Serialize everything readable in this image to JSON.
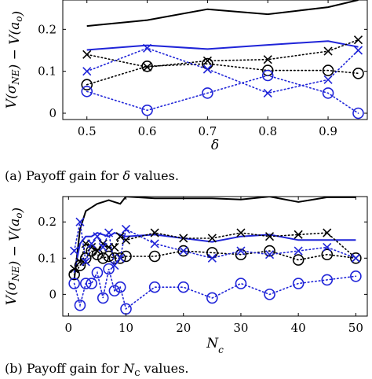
{
  "captions": {
    "a_prefix": "(a) Payoff gain for ",
    "a_symbol": "δ",
    "a_suffix": " values.",
    "b_prefix": "(b) Payoff gain for ",
    "b_symbol": "N",
    "b_sub": "c",
    "b_suffix": " values."
  },
  "colors": {
    "black": "#000000",
    "blue": "#1f24d8"
  },
  "chart_data": [
    {
      "type": "line",
      "xlabel": "δ",
      "ylabel": "V(σ_NE) − V(a_o)",
      "xlim": [
        0.46,
        0.965
      ],
      "ylim": [
        -0.015,
        0.27
      ],
      "xticks": [
        0.5,
        0.6,
        0.7,
        0.8,
        0.9
      ],
      "yticks": [
        0,
        0.1,
        0.2
      ],
      "grid": false,
      "series": [
        {
          "color": "#000000",
          "style": "solid",
          "marker": "none",
          "x": [
            0.5,
            0.6,
            0.7,
            0.8,
            0.9,
            0.95
          ],
          "y": [
            0.208,
            0.222,
            0.248,
            0.236,
            0.253,
            0.27
          ]
        },
        {
          "color": "#1f24d8",
          "style": "solid",
          "marker": "none",
          "x": [
            0.5,
            0.6,
            0.7,
            0.8,
            0.9,
            0.95
          ],
          "y": [
            0.151,
            0.162,
            0.153,
            0.163,
            0.172,
            0.158
          ]
        },
        {
          "color": "#000000",
          "style": "dotted",
          "marker": "x",
          "x": [
            0.5,
            0.6,
            0.7,
            0.8,
            0.9,
            0.95
          ],
          "y": [
            0.14,
            0.11,
            0.125,
            0.128,
            0.148,
            0.175
          ]
        },
        {
          "color": "#000000",
          "style": "dotted",
          "marker": "o",
          "x": [
            0.5,
            0.6,
            0.7,
            0.8,
            0.9,
            0.95
          ],
          "y": [
            0.068,
            0.112,
            0.118,
            0.102,
            0.102,
            0.095
          ]
        },
        {
          "color": "#1f24d8",
          "style": "dotted",
          "marker": "x",
          "x": [
            0.5,
            0.6,
            0.7,
            0.8,
            0.9,
            0.95
          ],
          "y": [
            0.1,
            0.155,
            0.105,
            0.048,
            0.08,
            0.15
          ]
        },
        {
          "color": "#1f24d8",
          "style": "dotted",
          "marker": "o",
          "x": [
            0.5,
            0.6,
            0.7,
            0.8,
            0.9,
            0.95
          ],
          "y": [
            0.052,
            0.007,
            0.048,
            0.09,
            0.048,
            0.0
          ]
        }
      ]
    },
    {
      "type": "line",
      "xlabel": "N_c",
      "ylabel": "V(σ_NE) − V(a_o)",
      "xlim": [
        -1,
        52
      ],
      "ylim": [
        -0.06,
        0.27
      ],
      "xticks": [
        0,
        10,
        20,
        30,
        40,
        50
      ],
      "yticks": [
        0,
        0.1,
        0.2
      ],
      "grid": false,
      "series": [
        {
          "color": "#000000",
          "style": "solid",
          "marker": "none",
          "x": [
            1,
            2,
            3,
            4,
            5,
            6,
            7,
            8,
            9,
            10,
            15,
            20,
            25,
            30,
            35,
            40,
            45,
            50
          ],
          "y": [
            0.04,
            0.18,
            0.23,
            0.24,
            0.25,
            0.255,
            0.26,
            0.255,
            0.25,
            0.27,
            0.265,
            0.265,
            0.265,
            0.262,
            0.27,
            0.255,
            0.268,
            0.268
          ]
        },
        {
          "color": "#1f24d8",
          "style": "solid",
          "marker": "none",
          "x": [
            1,
            2,
            3,
            4,
            5,
            6,
            7,
            8,
            9,
            10,
            15,
            20,
            25,
            30,
            35,
            40,
            45,
            50
          ],
          "y": [
            0.06,
            0.14,
            0.16,
            0.16,
            0.17,
            0.165,
            0.16,
            0.17,
            0.165,
            0.16,
            0.165,
            0.155,
            0.145,
            0.16,
            0.165,
            0.15,
            0.15,
            0.15
          ]
        },
        {
          "color": "#000000",
          "style": "dotted",
          "marker": "x",
          "x": [
            1,
            2,
            3,
            4,
            5,
            6,
            7,
            8,
            9,
            10,
            15,
            20,
            25,
            30,
            35,
            40,
            45,
            50
          ],
          "y": [
            0.07,
            0.09,
            0.14,
            0.13,
            0.12,
            0.14,
            0.13,
            0.13,
            0.16,
            0.15,
            0.17,
            0.155,
            0.155,
            0.17,
            0.16,
            0.165,
            0.17,
            0.1
          ]
        },
        {
          "color": "#000000",
          "style": "dotted",
          "marker": "o",
          "x": [
            1,
            2,
            3,
            4,
            5,
            6,
            7,
            8,
            9,
            10,
            15,
            20,
            25,
            30,
            35,
            40,
            45,
            50
          ],
          "y": [
            0.055,
            0.08,
            0.1,
            0.12,
            0.11,
            0.1,
            0.105,
            0.1,
            0.1,
            0.105,
            0.105,
            0.12,
            0.115,
            0.11,
            0.12,
            0.095,
            0.11,
            0.1
          ]
        },
        {
          "color": "#1f24d8",
          "style": "dotted",
          "marker": "x",
          "x": [
            1,
            2,
            3,
            4,
            5,
            6,
            7,
            8,
            9,
            10,
            15,
            20,
            25,
            30,
            35,
            40,
            45,
            50
          ],
          "y": [
            0.12,
            0.2,
            0.09,
            0.14,
            0.16,
            0.13,
            0.17,
            0.08,
            0.1,
            0.18,
            0.14,
            0.12,
            0.1,
            0.12,
            0.11,
            0.12,
            0.13,
            0.1
          ]
        },
        {
          "color": "#1f24d8",
          "style": "dotted",
          "marker": "o",
          "x": [
            1,
            2,
            3,
            4,
            5,
            6,
            7,
            8,
            9,
            10,
            15,
            20,
            25,
            30,
            35,
            40,
            45,
            50
          ],
          "y": [
            0.03,
            -0.03,
            0.03,
            0.03,
            0.06,
            -0.01,
            0.07,
            0.01,
            0.02,
            -0.04,
            0.02,
            0.02,
            -0.01,
            0.03,
            0.0,
            0.03,
            0.04,
            0.05
          ]
        }
      ]
    }
  ]
}
